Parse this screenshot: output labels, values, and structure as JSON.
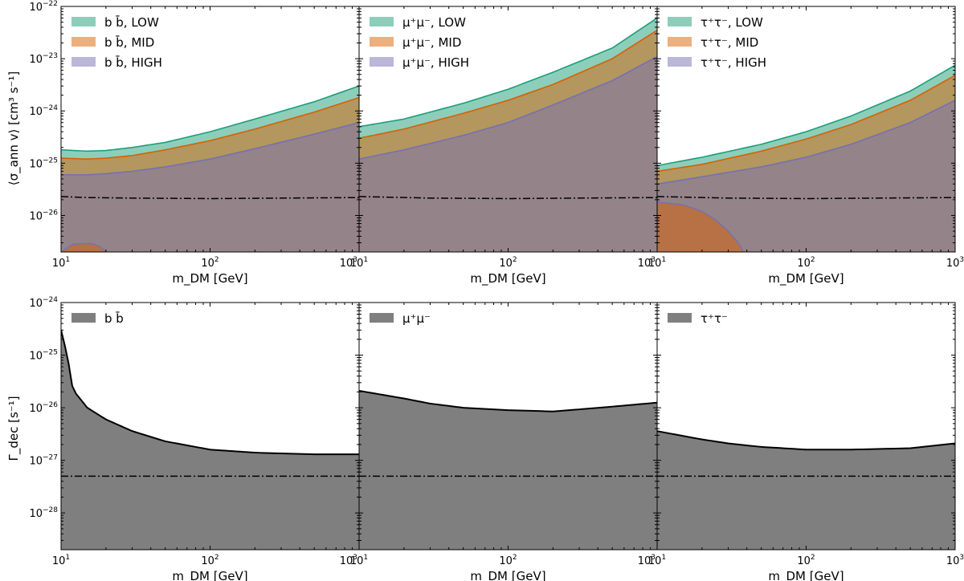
{
  "figure": {
    "row_ylabels": [
      "⟨σ_ann v⟩ [cm³ s⁻¹]",
      "Γ_dec [s⁻¹]"
    ],
    "xlabel": "m_DM [GeV]"
  },
  "colors": {
    "low": "#1b9e77",
    "mid": "#d95f02",
    "high": "#7570b3",
    "decay": "#7f7f7f",
    "reference": "#000000"
  },
  "chart_data": [
    {
      "type": "area",
      "panel": "annihilation",
      "channel": "b b̄",
      "xscale": "log",
      "yscale": "log",
      "xlim": [
        10,
        1000
      ],
      "ylim": [
        2e-27,
        1e-22
      ],
      "x": [
        10,
        15,
        20,
        30,
        50,
        100,
        200,
        500,
        1000
      ],
      "series": [
        {
          "name": "b b̄, LOW",
          "key": "low",
          "values": [
            1.8e-25,
            1.7e-25,
            1.75e-25,
            2e-25,
            2.5e-25,
            4e-25,
            7e-25,
            1.5e-24,
            3e-24
          ]
        },
        {
          "name": "b b̄, MID",
          "key": "mid",
          "values": [
            1.25e-25,
            1.2e-25,
            1.25e-25,
            1.4e-25,
            1.8e-25,
            2.7e-25,
            4.5e-25,
            9.5e-25,
            1.8e-24
          ]
        },
        {
          "name": "b b̄, HIGH",
          "key": "high",
          "values": [
            6e-26,
            6e-26,
            6.3e-26,
            7e-26,
            8.5e-26,
            1.2e-25,
            1.9e-25,
            3.6e-25,
            6e-25
          ]
        }
      ],
      "reference": {
        "x": [
          10,
          15,
          30,
          100,
          300,
          1000
        ],
        "values": [
          2.3e-26,
          2.2e-26,
          2.15e-26,
          2.1e-26,
          2.15e-26,
          2.2e-26
        ]
      },
      "island": {
        "x": [
          10,
          12,
          14,
          16,
          18,
          20
        ],
        "values": [
          2e-27,
          2.8e-27,
          2.9e-27,
          2.9e-27,
          2.6e-27,
          2e-27
        ]
      },
      "legend_position": "upper-left"
    },
    {
      "type": "area",
      "panel": "annihilation",
      "channel": "μ⁺μ⁻",
      "xscale": "log",
      "yscale": "log",
      "xlim": [
        10,
        1000
      ],
      "ylim": [
        2e-27,
        1e-22
      ],
      "x": [
        10,
        20,
        50,
        100,
        200,
        500,
        1000
      ],
      "series": [
        {
          "name": "μ⁺μ⁻, LOW",
          "key": "low",
          "values": [
            5e-25,
            7e-25,
            1.4e-24,
            2.6e-24,
            5.5e-24,
            1.6e-23,
            6e-23
          ]
        },
        {
          "name": "μ⁺μ⁻, MID",
          "key": "mid",
          "values": [
            3e-25,
            4.5e-25,
            9e-25,
            1.6e-24,
            3.2e-24,
            1e-23,
            3.5e-23
          ]
        },
        {
          "name": "μ⁺μ⁻, HIGH",
          "key": "high",
          "values": [
            1.2e-25,
            1.8e-25,
            3.4e-25,
            6e-25,
            1.3e-24,
            3.8e-24,
            1.1e-23
          ]
        }
      ],
      "reference": {
        "x": [
          10,
          30,
          100,
          300,
          1000
        ],
        "values": [
          2.3e-26,
          2.15e-26,
          2.1e-26,
          2.15e-26,
          2.2e-26
        ]
      },
      "legend_position": "upper-left"
    },
    {
      "type": "area",
      "panel": "annihilation",
      "channel": "τ⁺τ⁻",
      "xscale": "log",
      "yscale": "log",
      "xlim": [
        10,
        1000
      ],
      "ylim": [
        2e-27,
        1e-22
      ],
      "x": [
        10,
        20,
        50,
        100,
        200,
        500,
        1000
      ],
      "series": [
        {
          "name": "τ⁺τ⁻, LOW",
          "key": "low",
          "values": [
            9e-26,
            1.3e-25,
            2.3e-25,
            4e-25,
            8e-25,
            2.4e-24,
            7.5e-24
          ]
        },
        {
          "name": "τ⁺τ⁻, MID",
          "key": "mid",
          "values": [
            7e-26,
            9.5e-26,
            1.7e-25,
            2.9e-25,
            5.5e-25,
            1.6e-24,
            4.8e-24
          ]
        },
        {
          "name": "τ⁺τ⁻, HIGH",
          "key": "high",
          "values": [
            4e-26,
            5.5e-26,
            8.5e-26,
            1.3e-25,
            2.3e-25,
            6e-25,
            1.6e-24
          ]
        }
      ],
      "reference": {
        "x": [
          10,
          30,
          100,
          300,
          1000
        ],
        "values": [
          2.3e-26,
          2.15e-26,
          2.1e-26,
          2.15e-26,
          2.2e-26
        ]
      },
      "island": {
        "x": [
          10,
          15,
          20,
          25,
          30,
          35,
          38
        ],
        "values": [
          1.8e-26,
          1.6e-26,
          1.2e-26,
          8e-27,
          5e-27,
          3e-27,
          2e-27
        ]
      },
      "legend_position": "upper-left"
    },
    {
      "type": "area",
      "panel": "decay",
      "channel": "b b̄",
      "xscale": "log",
      "yscale": "log",
      "xlim": [
        10,
        1000
      ],
      "ylim": [
        2e-29,
        1e-24
      ],
      "x": [
        10,
        11,
        12,
        15,
        20,
        30,
        50,
        100,
        200,
        500,
        1000
      ],
      "series": [
        {
          "name": "b b̄",
          "key": "decay",
          "values": [
            3e-25,
            1e-25,
            2.2e-26,
            1e-26,
            6e-27,
            3.6e-27,
            2.3e-27,
            1.6e-27,
            1.4e-27,
            1.3e-27,
            1.3e-27
          ]
        }
      ],
      "reference": {
        "x": [
          10,
          1000
        ],
        "values": [
          5e-28,
          5e-28
        ]
      },
      "legend_position": "upper-left"
    },
    {
      "type": "area",
      "panel": "decay",
      "channel": "μ⁺μ⁻",
      "xscale": "log",
      "yscale": "log",
      "xlim": [
        10,
        1000
      ],
      "ylim": [
        2e-29,
        1e-24
      ],
      "x": [
        10,
        20,
        30,
        50,
        100,
        200,
        300,
        500,
        1000
      ],
      "series": [
        {
          "name": "μ⁺μ⁻",
          "key": "decay",
          "values": [
            2.1e-26,
            1.5e-26,
            1.2e-26,
            1e-26,
            9e-27,
            8.5e-27,
            9.3e-27,
            1.05e-26,
            1.25e-26
          ]
        }
      ],
      "reference": {
        "x": [
          10,
          1000
        ],
        "values": [
          5e-28,
          5e-28
        ]
      },
      "legend_position": "upper-left"
    },
    {
      "type": "area",
      "panel": "decay",
      "channel": "τ⁺τ⁻",
      "xscale": "log",
      "yscale": "log",
      "xlim": [
        10,
        1000
      ],
      "ylim": [
        2e-29,
        1e-24
      ],
      "x": [
        10,
        15,
        20,
        30,
        50,
        100,
        200,
        500,
        1000
      ],
      "series": [
        {
          "name": "τ⁺τ⁻",
          "key": "decay",
          "values": [
            3.6e-27,
            2.9e-27,
            2.5e-27,
            2.1e-27,
            1.8e-27,
            1.6e-27,
            1.6e-27,
            1.7e-27,
            2.1e-27
          ]
        }
      ],
      "reference": {
        "x": [
          10,
          1000
        ],
        "values": [
          5e-28,
          5e-28
        ]
      },
      "legend_position": "upper-left"
    }
  ]
}
